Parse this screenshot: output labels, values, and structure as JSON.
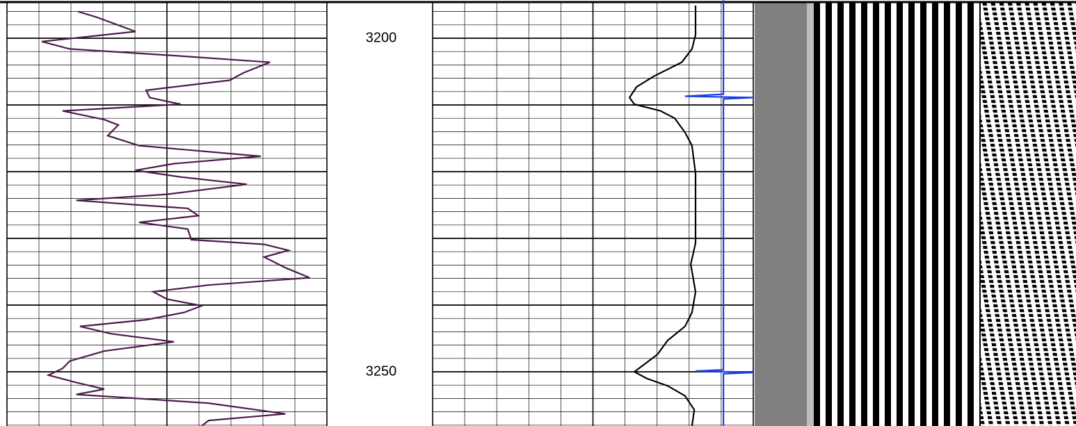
{
  "chart_data": {
    "type": "well-log",
    "ylim": [
      3194.27,
      3258.125
    ],
    "yticks": [
      3200,
      3250
    ],
    "major_grid": [
      3200,
      3210,
      3220,
      3230,
      3240,
      3250
    ],
    "minor_grid": [
      3196,
      3198,
      3202,
      3204,
      3206,
      3208,
      3212,
      3214,
      3216,
      3218,
      3222,
      3224,
      3226,
      3228,
      3232,
      3234,
      3236,
      3238,
      3242,
      3244,
      3246,
      3248,
      3252,
      3254,
      3256,
      3258
    ],
    "xlim": [
      0,
      10
    ],
    "xticks": [
      0,
      1,
      2,
      3,
      4,
      5,
      6,
      7,
      8,
      9,
      10
    ],
    "tracks": [
      {
        "series": [
          {
            "color": "#4b1a4b",
            "depths": [
              3196.0,
              3196.9,
              3199.0,
              3200.5,
              3201.6,
              3202.6,
              3203.6,
              3205.2,
              3206.3,
              3207.8,
              3208.9,
              3209.9,
              3210.9,
              3212.2,
              3213.0,
              3214.6,
              3216.1,
              3217.7,
              3218.8,
              3219.8,
              3220.8,
              3221.9,
              3223.4,
              3224.3,
              3225.0,
              3225.5,
              3226.6,
              3227.6,
              3228.6,
              3230.2,
              3230.9,
              3231.8,
              3232.8,
              3234.4,
              3235.9,
              3237.0,
              3238.0,
              3239.1,
              3240.1,
              3241.1,
              3242.2,
              3243.2,
              3244.3,
              3245.5,
              3246.9,
              3248.4,
              3249.5,
              3250.5,
              3251.6,
              3252.6,
              3253.4,
              3254.7,
              3256.3,
              3257.3,
              3258.1
            ],
            "values": [
              2.22,
              2.83,
              4.02,
              1.09,
              1.96,
              5.22,
              8.22,
              7.39,
              6.96,
              4.35,
              4.46,
              5.43,
              1.74,
              3.04,
              3.48,
              3.15,
              4.13,
              7.93,
              5.22,
              4.02,
              5.43,
              7.5,
              5.0,
              2.17,
              4.13,
              5.65,
              5.98,
              4.13,
              5.65,
              5.76,
              8.04,
              8.8,
              8.04,
              8.7,
              9.46,
              6.3,
              4.57,
              5.0,
              6.09,
              5.54,
              4.35,
              2.28,
              3.26,
              5.22,
              3.04,
              1.96,
              1.74,
              1.3,
              2.17,
              3.04,
              2.17,
              6.3,
              8.7,
              6.3,
              6.09
            ]
          }
        ]
      },
      {
        "series": [
          {
            "color": "#000000",
            "depths": [
              3195.1,
              3199.5,
              3201.6,
              3203.6,
              3205.7,
              3207.3,
              3208.9,
              3209.9,
              3210.9,
              3212.0,
              3214.1,
              3216.1,
              3220.3,
              3230.7,
              3233.9,
              3238.0,
              3241.1,
              3243.2,
              3245.3,
              3247.4,
              3249.0,
              3250.0,
              3251.0,
              3252.1,
              3253.6,
              3255.7,
              3258.1
            ],
            "values": [
              8.2,
              8.2,
              8.09,
              7.77,
              6.9,
              6.36,
              6.14,
              6.29,
              7.11,
              7.55,
              7.87,
              8.09,
              8.2,
              8.2,
              8.05,
              8.2,
              8.09,
              7.87,
              7.33,
              7.01,
              6.57,
              6.29,
              6.68,
              7.33,
              7.87,
              8.16,
              8.09
            ]
          },
          {
            "color": "#1a3fe0",
            "depths": [
              3194.3,
              3208.4,
              3208.7,
              3208.9,
              3209.1,
              3249.7,
              3249.9,
              3250.1,
              3250.3,
              3258.1
            ],
            "values": [
              9.07,
              9.07,
              7.87,
              10,
              9.07,
              9.07,
              8.2,
              10,
              9.07,
              9.07
            ]
          }
        ]
      }
    ]
  }
}
